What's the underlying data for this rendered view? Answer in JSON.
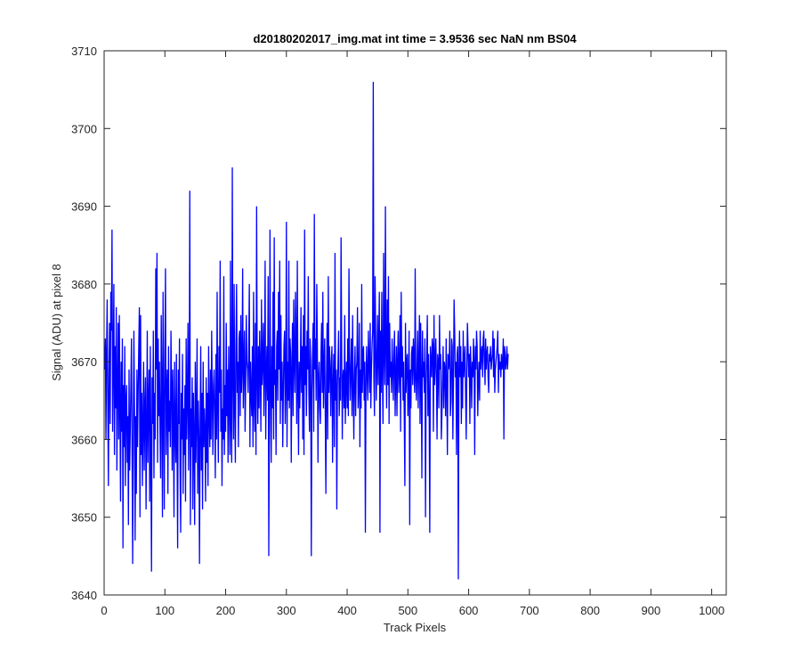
{
  "chart_data": {
    "type": "line",
    "title": "d20180202017_img.mat int time = 3.9536 sec  NaN nm BS04",
    "xlabel": "Track Pixels",
    "ylabel": "Signal (ADU) at pixel 8",
    "xlim": [
      0,
      1024
    ],
    "ylim": [
      3640,
      3710
    ],
    "xticks": [
      0,
      100,
      200,
      300,
      400,
      500,
      600,
      700,
      800,
      900,
      1000
    ],
    "yticks": [
      3640,
      3650,
      3660,
      3670,
      3680,
      3690,
      3700,
      3710
    ],
    "grid": false,
    "series_color": "#0000ff",
    "series": [
      {
        "values": [
          3669,
          3673,
          3660,
          3671,
          3678,
          3665,
          3654,
          3668,
          3675,
          3662,
          3679,
          3674,
          3687,
          3661,
          3670,
          3680,
          3658,
          3672,
          3664,
          3677,
          3656,
          3667,
          3675,
          3660,
          3676,
          3664,
          3652,
          3670,
          3661,
          3673,
          3646,
          3667,
          3659,
          3672,
          3654,
          3665,
          3667,
          3657,
          3663,
          3649,
          3669,
          3656,
          3661,
          3667,
          3673,
          3658,
          3644,
          3661,
          3674,
          3664,
          3647,
          3663,
          3653,
          3669,
          3659,
          3666,
          3672,
          3677,
          3650,
          3676,
          3658,
          3666,
          3654,
          3662,
          3670,
          3656,
          3664,
          3668,
          3651,
          3661,
          3674,
          3657,
          3665,
          3669,
          3652,
          3672,
          3658,
          3643,
          3668,
          3662,
          3674,
          3655,
          3666,
          3660,
          3682,
          3669,
          3684,
          3657,
          3673,
          3663,
          3670,
          3661,
          3655,
          3676,
          3666,
          3650,
          3679,
          3664,
          3651,
          3671,
          3682,
          3658,
          3666,
          3669,
          3653,
          3672,
          3661,
          3665,
          3659,
          3674,
          3667,
          3656,
          3669,
          3663,
          3650,
          3670,
          3661,
          3657,
          3671,
          3659,
          3646,
          3669,
          3662,
          3673,
          3656,
          3648,
          3666,
          3660,
          3671,
          3653,
          3664,
          3658,
          3667,
          3652,
          3673,
          3660,
          3665,
          3675,
          3656,
          3663,
          3692,
          3649,
          3664,
          3659,
          3668,
          3651,
          3666,
          3660,
          3649,
          3670,
          3657,
          3663,
          3673,
          3653,
          3665,
          3660,
          3644,
          3662,
          3672,
          3656,
          3666,
          3651,
          3670,
          3659,
          3664,
          3661,
          3652,
          3668,
          3657,
          3666,
          3654,
          3672,
          3663,
          3659,
          3669,
          3660,
          3674,
          3665,
          3658,
          3667,
          3669,
          3663,
          3655,
          3671,
          3660,
          3679,
          3664,
          3657,
          3672,
          3666,
          3683,
          3661,
          3669,
          3654,
          3664,
          3660,
          3681,
          3658,
          3667,
          3661,
          3675,
          3663,
          3669,
          3657,
          3672,
          3665,
          3658,
          3683,
          3662,
          3657,
          3695,
          3668,
          3660,
          3680,
          3664,
          3657,
          3672,
          3680,
          3666,
          3670,
          3659,
          3673,
          3674,
          3663,
          3676,
          3666,
          3669,
          3682,
          3664,
          3670,
          3674,
          3661,
          3667,
          3676,
          3670,
          3669,
          3666,
          3672,
          3680,
          3659,
          3670,
          3666,
          3663,
          3672,
          3659,
          3679,
          3665,
          3661,
          3675,
          3658,
          3690,
          3668,
          3662,
          3672,
          3664,
          3674,
          3669,
          3661,
          3678,
          3667,
          3670,
          3675,
          3663,
          3669,
          3683,
          3660,
          3668,
          3672,
          3665,
          3681,
          3645,
          3662,
          3687,
          3666,
          3657,
          3672,
          3664,
          3679,
          3660,
          3686,
          3667,
          3669,
          3658,
          3672,
          3674,
          3665,
          3679,
          3669,
          3683,
          3662,
          3676,
          3665,
          3670,
          3659,
          3666,
          3672,
          3674,
          3662,
          3667,
          3688,
          3659,
          3670,
          3665,
          3683,
          3664,
          3673,
          3671,
          3657,
          3669,
          3675,
          3663,
          3678,
          3670,
          3666,
          3679,
          3673,
          3662,
          3683,
          3667,
          3658,
          3670,
          3664,
          3669,
          3677,
          3666,
          3672,
          3660,
          3676,
          3658,
          3687,
          3667,
          3672,
          3663,
          3674,
          3669,
          3681,
          3666,
          3661,
          3673,
          3670,
          3645,
          3666,
          3671,
          3675,
          3661,
          3689,
          3669,
          3673,
          3665,
          3680,
          3672,
          3657,
          3668,
          3670,
          3664,
          3662,
          3671,
          3675,
          3666,
          3679,
          3664,
          3669,
          3673,
          3663,
          3653,
          3668,
          3675,
          3660,
          3681,
          3666,
          3672,
          3669,
          3663,
          3670,
          3672,
          3657,
          3667,
          3671,
          3659,
          3684,
          3665,
          3669,
          3651,
          3667,
          3670,
          3674,
          3663,
          3668,
          3665,
          3686,
          3672,
          3660,
          3668,
          3669,
          3664,
          3676,
          3662,
          3667,
          3670,
          3664,
          3673,
          3663,
          3682,
          3670,
          3665,
          3669,
          3673,
          3663,
          3676,
          3667,
          3660,
          3668,
          3672,
          3663,
          3669,
          3670,
          3677,
          3664,
          3667,
          3675,
          3659,
          3669,
          3664,
          3680,
          3666,
          3671,
          3672,
          3665,
          3670,
          3648,
          3667,
          3672,
          3668,
          3665,
          3674,
          3670,
          3666,
          3675,
          3664,
          3669,
          3672,
          3674,
          3706,
          3668,
          3663,
          3681,
          3673,
          3665,
          3670,
          3676,
          3667,
          3673,
          3679,
          3648,
          3674,
          3666,
          3679,
          3669,
          3662,
          3684,
          3671,
          3667,
          3690,
          3672,
          3664,
          3678,
          3667,
          3681,
          3662,
          3675,
          3668,
          3670,
          3666,
          3673,
          3669,
          3665,
          3671,
          3674,
          3663,
          3668,
          3672,
          3663,
          3670,
          3674,
          3666,
          3669,
          3676,
          3661,
          3679,
          3668,
          3672,
          3665,
          3670,
          3663,
          3654,
          3675,
          3666,
          3670,
          3671,
          3663,
          3667,
          3674,
          3649,
          3669,
          3664,
          3671,
          3672,
          3667,
          3673,
          3670,
          3666,
          3682,
          3668,
          3665,
          3669,
          3674,
          3664,
          3670,
          3676,
          3662,
          3675,
          3668,
          3655,
          3674,
          3668,
          3670,
          3666,
          3673,
          3650,
          3667,
          3671,
          3676,
          3663,
          3671,
          3665,
          3648,
          3672,
          3670,
          3668,
          3673,
          3672,
          3661,
          3676,
          3667,
          3670,
          3673,
          3668,
          3660,
          3671,
          3670,
          3664,
          3676,
          3669,
          3671,
          3660,
          3663,
          3668,
          3672,
          3664,
          3670,
          3669,
          3663,
          3673,
          3667,
          3658,
          3671,
          3669,
          3670,
          3674,
          3663,
          3665,
          3673,
          3672,
          3660,
          3667,
          3678,
          3674,
          3668,
          3670,
          3658,
          3671,
          3672,
          3642,
          3669,
          3674,
          3668,
          3672,
          3662,
          3670,
          3664,
          3674,
          3668,
          3670,
          3672,
          3666,
          3660,
          3669,
          3675,
          3672,
          3668,
          3671,
          3662,
          3672,
          3669,
          3664,
          3670,
          3668,
          3673,
          3670,
          3658,
          3672,
          3669,
          3674,
          3672,
          3663,
          3668,
          3670,
          3665,
          3674,
          3669,
          3671,
          3672,
          3668,
          3673,
          3674,
          3670,
          3667,
          3673,
          3669,
          3671,
          3672,
          3668,
          3666,
          3671,
          3670,
          3672,
          3669,
          3670,
          3671,
          3674,
          3668,
          3673,
          3666,
          3669,
          3670,
          3671,
          3672,
          3674,
          3666,
          3671,
          3669,
          3670,
          3668,
          3671,
          3669,
          3670,
          3673,
          3660,
          3672,
          3671,
          3669,
          3670,
          3672,
          3669,
          3671
        ]
      }
    ]
  }
}
